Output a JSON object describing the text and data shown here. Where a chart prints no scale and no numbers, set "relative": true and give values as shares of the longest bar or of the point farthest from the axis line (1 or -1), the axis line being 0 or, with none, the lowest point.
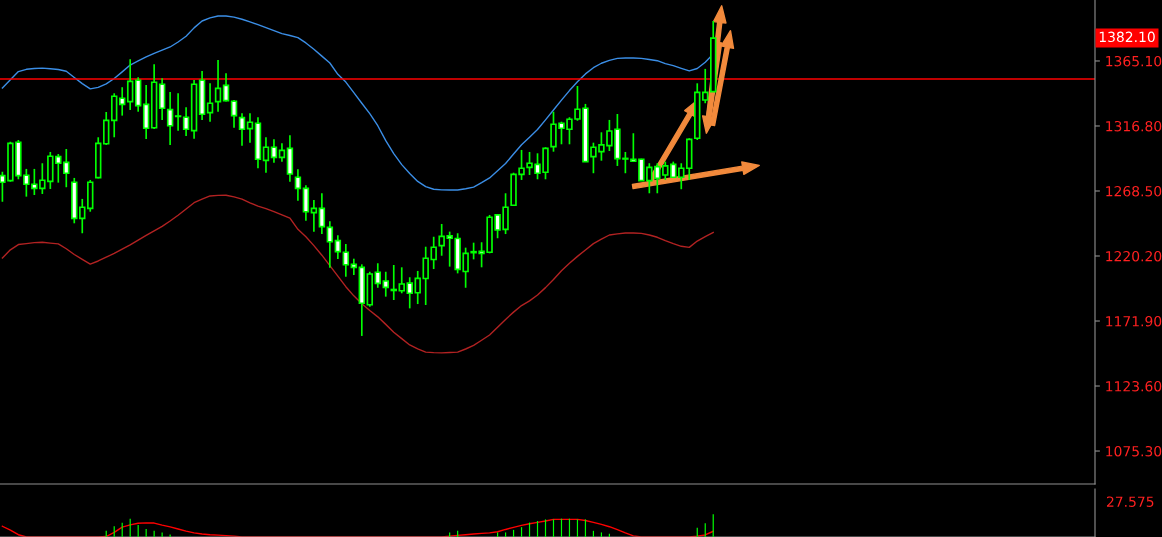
{
  "chart_data": [
    {
      "type": "candlestick",
      "color": "#00ff00",
      "tick_labels": "y",
      "grid": false,
      "categories": [
        null,
        null,
        null,
        null,
        null,
        null,
        null,
        null,
        null,
        null,
        null,
        null,
        null,
        null,
        null,
        null,
        null,
        null,
        null,
        null,
        null,
        null,
        null,
        null,
        null,
        null,
        null,
        null,
        null,
        null,
        null,
        null,
        null,
        null,
        null,
        null,
        null,
        null,
        null,
        null,
        null,
        null,
        null,
        null,
        null,
        null,
        null,
        null,
        null,
        null,
        null,
        null,
        null,
        null,
        null,
        null,
        null,
        null,
        null,
        null,
        null,
        null,
        null,
        null,
        null,
        null,
        null,
        null,
        null,
        null,
        null,
        null,
        null,
        null,
        null,
        null,
        null,
        null,
        null,
        null,
        null,
        null,
        null,
        null,
        null,
        null,
        null,
        null,
        null,
        null
      ],
      "ohlc": [
        [
          1279.9,
          1282.8,
          1260.5,
          1275.0
        ],
        [
          1276.2,
          1305.1,
          1275.4,
          1303.9
        ],
        [
          1304.7,
          1306.4,
          1277.2,
          1279.9
        ],
        [
          1280.2,
          1284.9,
          1264.3,
          1273.5
        ],
        [
          1273.5,
          1284.9,
          1265.5,
          1270.5
        ],
        [
          1270.5,
          1289.1,
          1266.3,
          1276.5
        ],
        [
          1275.7,
          1297.5,
          1270.0,
          1294.3
        ],
        [
          1294.0,
          1296.0,
          1274.7,
          1289.1
        ],
        [
          1289.8,
          1299.7,
          1271.3,
          1281.7
        ],
        [
          1275.0,
          1278.2,
          1244.5,
          1248.2
        ],
        [
          1248.2,
          1262.6,
          1237.1,
          1256.4
        ],
        [
          1255.6,
          1276.7,
          1253.1,
          1275.0
        ],
        [
          1278.4,
          1308.4,
          1277.9,
          1303.9
        ],
        [
          1303.6,
          1327.2,
          1302.7,
          1321.0
        ],
        [
          1321.0,
          1341.1,
          1308.4,
          1338.9
        ],
        [
          1337.4,
          1345.6,
          1324.5,
          1332.9
        ],
        [
          1334.9,
          1366.4,
          1328.7,
          1350.0
        ],
        [
          1350.8,
          1353.0,
          1327.4,
          1331.9
        ],
        [
          1332.9,
          1347.3,
          1307.1,
          1315.1
        ],
        [
          1315.5,
          1362.7,
          1314.6,
          1349.3
        ],
        [
          1347.8,
          1352.2,
          1321.3,
          1330.0
        ],
        [
          1328.9,
          1342.1,
          1302.7,
          1317.0
        ],
        [
          1324.2,
          1341.1,
          1313.3,
          1323.9
        ],
        [
          1323.3,
          1330.7,
          1309.4,
          1314.4
        ],
        [
          1313.3,
          1351.0,
          1307.4,
          1347.8
        ],
        [
          1350.8,
          1357.7,
          1321.3,
          1325.5
        ],
        [
          1326.7,
          1348.5,
          1320.0,
          1333.7
        ],
        [
          1334.9,
          1365.8,
          1327.4,
          1344.8
        ],
        [
          1347.0,
          1356.0,
          1334.9,
          1335.6
        ],
        [
          1335.2,
          1336.1,
          1315.5,
          1324.5
        ],
        [
          1323.0,
          1326.2,
          1302.2,
          1314.4
        ],
        [
          1314.8,
          1326.2,
          1304.4,
          1319.6
        ],
        [
          1318.8,
          1323.3,
          1285.4,
          1292.1
        ],
        [
          1291.3,
          1308.4,
          1282.1,
          1301.0
        ],
        [
          1301.0,
          1306.9,
          1289.5,
          1293.5
        ],
        [
          1293.5,
          1303.9,
          1290.3,
          1298.7
        ],
        [
          1300.2,
          1309.9,
          1275.4,
          1281.1
        ],
        [
          1278.7,
          1284.6,
          1261.3,
          1270.5
        ],
        [
          1270.5,
          1272.7,
          1246.4,
          1253.1
        ],
        [
          1252.4,
          1261.8,
          1238.3,
          1255.6
        ],
        [
          1255.6,
          1266.8,
          1236.5,
          1242.0
        ],
        [
          1241.5,
          1246.0,
          1211.5,
          1230.8
        ],
        [
          1231.6,
          1235.6,
          1218.0,
          1223.4
        ],
        [
          1223.0,
          1229.1,
          1204.8,
          1213.7
        ],
        [
          1214.0,
          1218.2,
          1206.1,
          1211.8
        ],
        [
          1211.8,
          1214.0,
          1160.8,
          1185.1
        ],
        [
          1184.0,
          1208.5,
          1182.5,
          1206.8
        ],
        [
          1208.1,
          1214.8,
          1196.6,
          1199.9
        ],
        [
          1201.6,
          1208.5,
          1190.0,
          1196.9
        ],
        [
          1195.3,
          1213.5,
          1187.5,
          1194.6
        ],
        [
          1194.4,
          1211.8,
          1192.5,
          1199.4
        ],
        [
          1200.1,
          1204.4,
          1181.3,
          1192.5
        ],
        [
          1192.9,
          1209.1,
          1184.5,
          1203.6
        ],
        [
          1203.5,
          1227.1,
          1183.8,
          1218.5
        ],
        [
          1217.6,
          1234.5,
          1210.5,
          1226.7
        ],
        [
          1227.9,
          1244.0,
          1220.4,
          1234.8
        ],
        [
          1235.1,
          1238.3,
          1212.3,
          1233.4
        ],
        [
          1233.2,
          1237.1,
          1207.3,
          1210.3
        ],
        [
          1208.7,
          1226.4,
          1196.6,
          1222.2
        ],
        [
          1223.4,
          1230.1,
          1217.7,
          1222.7
        ],
        [
          1223.7,
          1230.4,
          1211.8,
          1222.2
        ],
        [
          1223.0,
          1250.7,
          1222.2,
          1249.0
        ],
        [
          1250.7,
          1251.4,
          1233.4,
          1239.5
        ],
        [
          1240.0,
          1266.8,
          1236.5,
          1256.4
        ],
        [
          1257.9,
          1282.1,
          1257.6,
          1280.9
        ],
        [
          1280.9,
          1299.0,
          1276.7,
          1285.4
        ],
        [
          1286.1,
          1297.5,
          1280.4,
          1289.1
        ],
        [
          1288.3,
          1296.5,
          1277.2,
          1281.7
        ],
        [
          1282.4,
          1301.0,
          1277.2,
          1300.2
        ],
        [
          1301.4,
          1327.4,
          1297.7,
          1318.1
        ],
        [
          1318.8,
          1320.0,
          1303.2,
          1315.1
        ],
        [
          1314.4,
          1323.3,
          1303.2,
          1321.8
        ],
        [
          1322.0,
          1346.5,
          1320.7,
          1329.2
        ],
        [
          1330.0,
          1333.2,
          1290.3,
          1290.3
        ],
        [
          1294.0,
          1304.4,
          1281.7,
          1301.0
        ],
        [
          1297.7,
          1312.1,
          1291.0,
          1302.7
        ],
        [
          1302.2,
          1321.3,
          1298.2,
          1313.1
        ],
        [
          1314.4,
          1325.7,
          1287.1,
          1292.5
        ],
        [
          1292.7,
          1297.5,
          1281.7,
          1292.3
        ],
        [
          1292.1,
          1311.4,
          1290.6,
          1290.6
        ],
        [
          1292.1,
          1292.5,
          1276.2,
          1276.2
        ],
        [
          1276.2,
          1289.1,
          1266.8,
          1286.1
        ],
        [
          1286.6,
          1289.1,
          1266.8,
          1277.9
        ],
        [
          1280.4,
          1290.3,
          1276.7,
          1287.1
        ],
        [
          1288.3,
          1290.3,
          1278.2,
          1278.7
        ],
        [
          1278.7,
          1289.1,
          1269.8,
          1285.4
        ],
        [
          1285.4,
          1307.7,
          1276.7,
          1306.9
        ],
        [
          1307.7,
          1348.5,
          1306.4,
          1341.8
        ],
        [
          1336.1,
          1359.2,
          1333.7,
          1341.8
        ],
        [
          1342.3,
          1394.8,
          1342.3,
          1382.1
        ]
      ],
      "series": [
        {
          "type": "line",
          "color": "#3b8ee6",
          "values": [
            1345.0,
            1351.1,
            1357.2,
            1358.9,
            1359.5,
            1359.8,
            1359.3,
            1358.8,
            1357.5,
            1352.8,
            1348.3,
            1344.4,
            1345.5,
            1348.1,
            1352.1,
            1357.0,
            1362.1,
            1365.1,
            1368.1,
            1370.8,
            1373.1,
            1375.5,
            1379.2,
            1383.5,
            1389.7,
            1394.8,
            1397.1,
            1398.5,
            1398.5,
            1397.7,
            1396.1,
            1394.1,
            1392.1,
            1389.9,
            1387.6,
            1385.4,
            1384.0,
            1382.5,
            1378.5,
            1373.8,
            1368.7,
            1363.6,
            1355.2,
            1349.4,
            1341.6,
            1333.7,
            1326.0,
            1317.0,
            1305.9,
            1296.3,
            1288.1,
            1281.5,
            1275.6,
            1271.7,
            1269.8,
            1269.3,
            1269.2,
            1269.2,
            1270.2,
            1271.4,
            1274.7,
            1278.2,
            1283.5,
            1288.9,
            1296.0,
            1302.9,
            1308.5,
            1314.2,
            1321.3,
            1328.7,
            1336.0,
            1343.1,
            1349.6,
            1355.5,
            1360.1,
            1363.4,
            1365.5,
            1367.0,
            1367.3,
            1367.3,
            1367.0,
            1366.2,
            1365.3,
            1363.1,
            1361.6,
            1359.6,
            1357.7,
            1359.5,
            1364.1,
            1370.3
          ]
        },
        {
          "type": "line",
          "color": "#b22222",
          "values": [
            1218.7,
            1224.8,
            1228.7,
            1229.4,
            1230.1,
            1230.4,
            1229.8,
            1229.2,
            1225.6,
            1221.3,
            1217.7,
            1214.2,
            1216.5,
            1219.3,
            1222.1,
            1225.3,
            1228.4,
            1232.0,
            1235.5,
            1238.9,
            1242.2,
            1246.2,
            1250.5,
            1255.1,
            1259.8,
            1262.4,
            1264.8,
            1265.2,
            1265.3,
            1264.1,
            1262.5,
            1259.7,
            1257.3,
            1255.4,
            1253.2,
            1250.8,
            1248.4,
            1240.0,
            1234.5,
            1227.9,
            1220.8,
            1213.0,
            1205.2,
            1197.4,
            1190.6,
            1184.7,
            1179.7,
            1175.0,
            1169.4,
            1163.6,
            1158.8,
            1154.1,
            1151.2,
            1148.8,
            1148.4,
            1148.2,
            1148.5,
            1148.8,
            1151.1,
            1153.8,
            1157.6,
            1161.5,
            1167.3,
            1173.1,
            1178.5,
            1183.4,
            1186.9,
            1191.2,
            1196.7,
            1202.7,
            1209.3,
            1214.8,
            1219.9,
            1224.7,
            1229.4,
            1232.7,
            1235.8,
            1236.6,
            1237.3,
            1237.3,
            1237.0,
            1235.8,
            1234.1,
            1231.6,
            1229.4,
            1227.4,
            1226.6,
            1231.3,
            1234.6,
            1237.7
          ]
        }
      ],
      "ylim": [
        1050.8,
        1410.4
      ],
      "yticks": [
        {
          "value": 1075.3,
          "label": "1075.30"
        },
        {
          "value": 1123.6,
          "label": "1123.60"
        },
        {
          "value": 1171.9,
          "label": "1171.90"
        },
        {
          "value": 1220.2,
          "label": "1220.20"
        },
        {
          "value": 1268.5,
          "label": "1268.50"
        },
        {
          "value": 1316.8,
          "label": "1316.80"
        },
        {
          "value": 1365.1,
          "label": "1365.10"
        }
      ],
      "ref_lines": [
        {
          "axis": "y",
          "value": 1351.7,
          "color": "#ff0000"
        }
      ],
      "annotations": [
        "1382.10"
      ]
    },
    {
      "type": "bar",
      "relative": true,
      "color": "#00ff00",
      "tick_labels": false,
      "grid": false,
      "categories": [
        null,
        null,
        null,
        null,
        null,
        null,
        null,
        null,
        null,
        null,
        null,
        null,
        null,
        null,
        null,
        null,
        null,
        null,
        null,
        null,
        null,
        null,
        null,
        null,
        null,
        null,
        null,
        null,
        null,
        null,
        null,
        null,
        null,
        null,
        null,
        null,
        null,
        null,
        null,
        null,
        null,
        null,
        null,
        null,
        null,
        null,
        null,
        null,
        null,
        null,
        null,
        null,
        null,
        null,
        null,
        null,
        null,
        null,
        null,
        null,
        null,
        null,
        null,
        null,
        null,
        null,
        null,
        null,
        null,
        null,
        null,
        null,
        null,
        null,
        null,
        null,
        null,
        null,
        null,
        null,
        null,
        null,
        null,
        null,
        null,
        null,
        null,
        null,
        null,
        null
      ],
      "values": [
        0,
        0,
        0,
        0,
        0,
        0,
        0,
        0,
        0,
        0,
        0,
        0,
        0,
        0.27,
        0.47,
        0.62,
        0.8,
        0.53,
        0.35,
        0.27,
        0.2,
        0.11,
        0,
        0,
        0,
        0,
        0,
        0,
        0,
        0,
        0,
        0,
        0,
        0,
        0,
        0,
        0,
        0,
        0,
        0,
        0,
        0,
        0,
        0,
        0,
        0,
        0,
        0,
        0,
        0,
        0,
        0,
        0,
        0,
        0,
        0,
        0.2,
        0.27,
        0,
        0,
        0,
        0,
        0.2,
        0.2,
        0.31,
        0.43,
        0.63,
        0.7,
        0.77,
        0.77,
        0.8,
        0.8,
        0.77,
        0.77,
        0.27,
        0.2,
        0.14,
        0,
        0,
        0,
        0,
        0,
        0,
        0,
        0,
        0,
        0,
        0.4,
        0.6,
        1
      ],
      "series": [
        {
          "type": "line",
          "color": "#ff0000",
          "values": [
            0.47,
            0.3,
            0.1,
            0,
            0,
            0,
            0,
            0,
            0,
            0,
            0,
            0,
            0,
            0.02,
            0.2,
            0.43,
            0.53,
            0.6,
            0.62,
            0.61,
            0.52,
            0.44,
            0.35,
            0.26,
            0.18,
            0.13,
            0.1,
            0.08,
            0.06,
            0.04,
            0,
            0,
            0,
            0,
            0,
            0,
            0,
            0,
            0,
            0,
            0,
            0,
            0,
            0,
            0,
            0,
            0,
            0,
            0,
            0,
            0,
            0,
            0,
            0,
            0,
            0,
            0.04,
            0.07,
            0.1,
            0.13,
            0.16,
            0.18,
            0.23,
            0.33,
            0.42,
            0.51,
            0.58,
            0.64,
            0.7,
            0.77,
            0.77,
            0.77,
            0.77,
            0.72,
            0.64,
            0.55,
            0.45,
            0.32,
            0.18,
            0.05,
            0,
            0,
            0,
            0,
            0,
            0,
            0,
            0.04,
            0.09,
            0.25
          ]
        }
      ],
      "annotations": [
        "27.575"
      ]
    }
  ]
}
